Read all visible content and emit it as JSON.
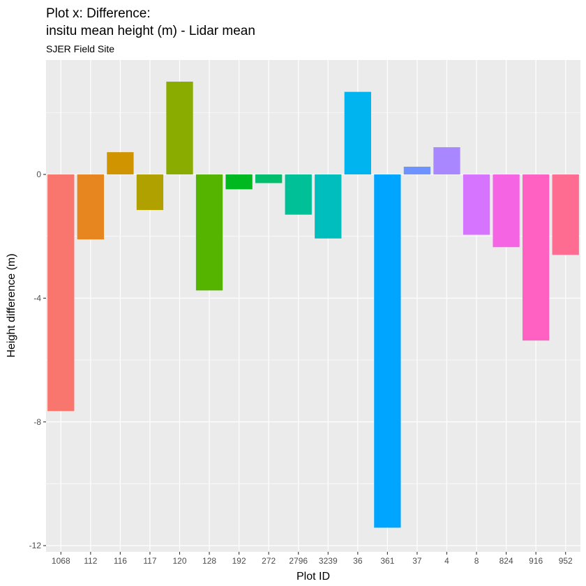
{
  "chart_data": {
    "type": "bar",
    "title": [
      "Plot x: Difference:",
      "insitu mean height (m) - Lidar mean"
    ],
    "subtitle": "SJER Field Site",
    "xlabel": "Plot ID",
    "ylabel": "Height difference (m)",
    "ylim": [
      -12.2,
      3.7
    ],
    "yticks": [
      0,
      -4,
      -8,
      -12
    ],
    "ytick_labels": [
      "0",
      "-4",
      "-8",
      "-12"
    ],
    "grid": true,
    "legend": "none",
    "categories": [
      "1068",
      "112",
      "116",
      "117",
      "120",
      "128",
      "192",
      "272",
      "2796",
      "3239",
      "36",
      "361",
      "37",
      "4",
      "8",
      "824",
      "916",
      "952"
    ],
    "values": [
      -7.65,
      -2.1,
      0.72,
      -1.15,
      3.0,
      -3.75,
      -0.48,
      -0.28,
      -1.3,
      -2.07,
      2.67,
      -11.42,
      0.25,
      0.88,
      -1.95,
      -2.35,
      -5.37,
      -2.6
    ],
    "colors": [
      "#F8766D",
      "#E7851E",
      "#CF9400",
      "#B0A000",
      "#8AAB00",
      "#55B400",
      "#00B81F",
      "#00BE6B",
      "#00C097",
      "#00BEBE",
      "#00B4EF",
      "#00A5FF",
      "#6C93FF",
      "#A988FF",
      "#D774FF",
      "#F564E3",
      "#FF61C3",
      "#FF6C91"
    ],
    "panel_background": "#EBEBEB",
    "grid_color": "#FFFFFF"
  }
}
